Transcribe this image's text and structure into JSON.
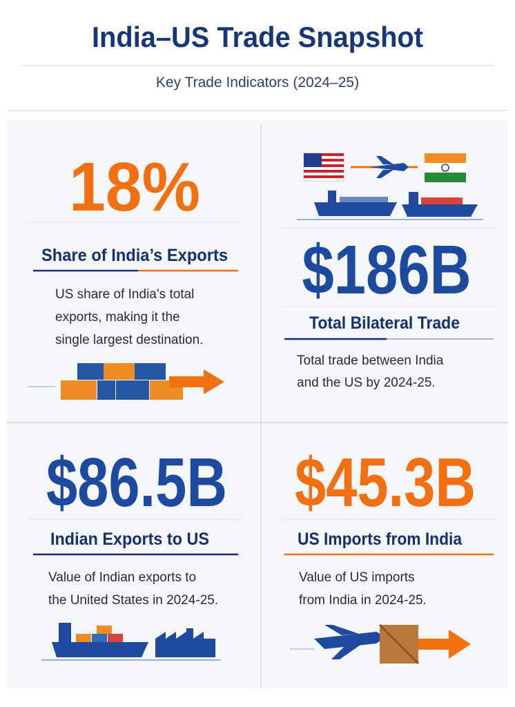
{
  "header": {
    "title": "India–US Trade Snapshot",
    "subtitle": "Key Trade Indicators (2024–25)"
  },
  "cards": [
    {
      "value": "18%",
      "label": "Share of India’s Exports",
      "description": [
        "US share of India’s total",
        "exports, making it the",
        "single largest destination."
      ]
    },
    {
      "value": "$186B",
      "label": "Total Bilateral Trade",
      "description": [
        "Total trade between India",
        "and the US by 2024-25."
      ]
    },
    {
      "value": "$86.5B",
      "label": "Indian Exports to US",
      "description": [
        "Value of Indian exports to",
        "the United States in 2024-25."
      ]
    },
    {
      "value": "$45.3B",
      "label": "US Imports from India",
      "description": [
        "Value of US imports",
        "from India in 2024-25."
      ]
    }
  ]
}
